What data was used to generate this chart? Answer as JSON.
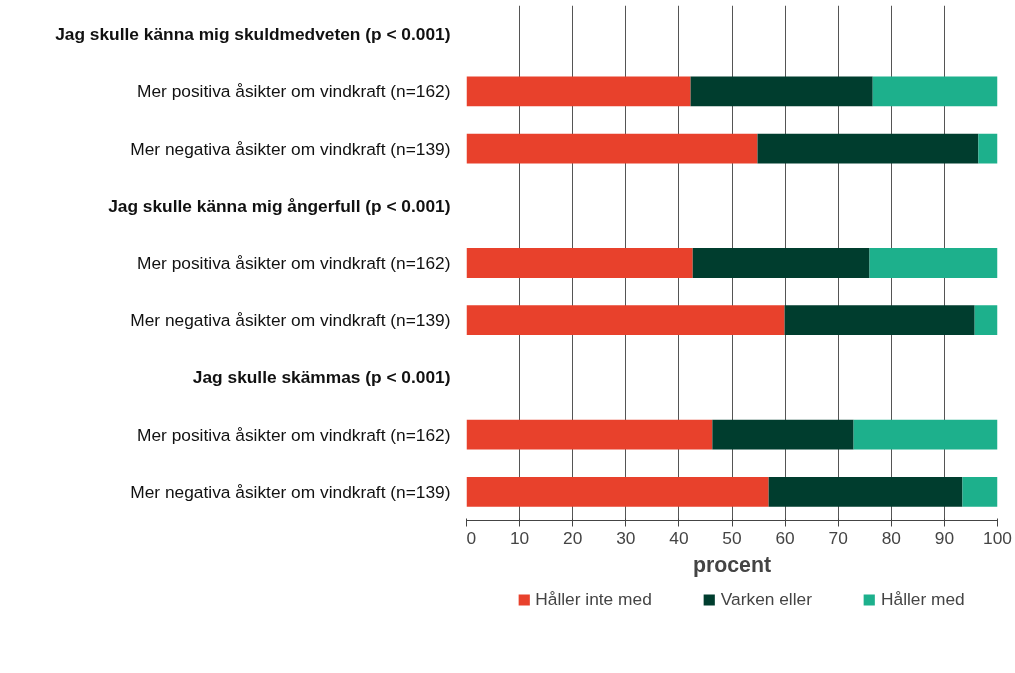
{
  "chart_data": {
    "type": "bar",
    "orientation": "horizontal",
    "stacked": true,
    "categories": [
      "Jag skulle känna mig skuldmedveten (p < 0.001)",
      "Mer positiva åsikter om vindkraft (n=162)",
      "Mer negativa åsikter om vindkraft (n=139)",
      "Jag skulle känna mig ångerfull (p < 0.001)",
      "Mer positiva åsikter om vindkraft (n=162)",
      "Mer negativa åsikter om vindkraft (n=139)",
      "Jag skulle skämmas (p < 0.001)",
      "Mer positiva åsikter om vindkraft (n=162)",
      "Mer negativa åsikter om vindkraft (n=139)"
    ],
    "series": [
      {
        "name": "Håller inte med",
        "color": "#e8412c",
        "values": [
          null,
          42.2,
          54.8,
          null,
          42.6,
          59.9,
          null,
          46.3,
          56.9
        ]
      },
      {
        "name": "Varken eller",
        "color": "#003d2e",
        "values": [
          null,
          34.3,
          41.6,
          null,
          33.3,
          35.8,
          null,
          26.6,
          36.5
        ]
      },
      {
        "name": "Håller med",
        "color": "#1db08c",
        "values": [
          null,
          23.5,
          3.6,
          null,
          24.1,
          4.3,
          null,
          27.1,
          6.6
        ]
      }
    ],
    "xlabel": "procent",
    "xlim": [
      0,
      100
    ],
    "xticks": [
      0,
      10,
      20,
      30,
      40,
      50,
      60,
      70,
      80,
      90,
      100
    ],
    "grid": "x",
    "legend": "bottom"
  }
}
